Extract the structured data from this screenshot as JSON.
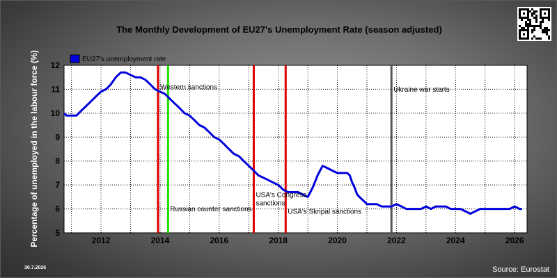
{
  "chart_data": {
    "type": "line",
    "title": "The Monthly Development of EU27's Unemployment Rate (season adjusted)",
    "ylabel": "Percentage of unemployed in the labour force (%)",
    "xlabel": "",
    "xlim": [
      2010.75,
      2026.42
    ],
    "ylim": [
      5,
      12
    ],
    "x_ticks": [
      2012,
      2014,
      2016,
      2018,
      2020,
      2022,
      2024,
      2026
    ],
    "y_ticks": [
      5,
      6,
      7,
      8,
      9,
      10,
      11,
      12
    ],
    "grid": "dotted",
    "legend_position": "top-left",
    "series": [
      {
        "name": "EU27's unemployment rate",
        "color": "#0000dd",
        "x": [
          2010.75,
          2010.83,
          2011.0,
          2011.17,
          2011.33,
          2011.5,
          2011.67,
          2011.83,
          2012.0,
          2012.17,
          2012.33,
          2012.5,
          2012.67,
          2012.83,
          2013.0,
          2013.17,
          2013.33,
          2013.5,
          2013.67,
          2013.83,
          2014.0,
          2014.17,
          2014.33,
          2014.5,
          2014.67,
          2014.83,
          2015.0,
          2015.17,
          2015.33,
          2015.5,
          2015.67,
          2015.83,
          2016.0,
          2016.17,
          2016.33,
          2016.5,
          2016.67,
          2016.83,
          2017.0,
          2017.17,
          2017.33,
          2017.5,
          2017.67,
          2017.83,
          2018.0,
          2018.17,
          2018.33,
          2018.5,
          2018.67,
          2018.83,
          2019.0,
          2019.17,
          2019.33,
          2019.5,
          2019.67,
          2019.83,
          2020.0,
          2020.08,
          2020.17,
          2020.25,
          2020.33,
          2020.42,
          2020.5,
          2020.58,
          2020.67,
          2020.75,
          2020.83,
          2020.92,
          2021.0,
          2021.17,
          2021.33,
          2021.5,
          2021.67,
          2021.83,
          2022.0,
          2022.17,
          2022.33,
          2022.5,
          2022.67,
          2022.83,
          2023.0,
          2023.17,
          2023.33,
          2023.5,
          2023.67,
          2023.83,
          2024.0,
          2024.17,
          2024.33,
          2024.5,
          2024.67,
          2024.83,
          2025.0,
          2025.17,
          2025.33,
          2025.5,
          2025.67,
          2025.83,
          2026.0,
          2026.17,
          2026.25
        ],
        "values": [
          10.0,
          9.9,
          9.9,
          9.9,
          10.1,
          10.3,
          10.5,
          10.7,
          10.9,
          11.0,
          11.2,
          11.5,
          11.7,
          11.7,
          11.6,
          11.5,
          11.5,
          11.4,
          11.2,
          11.0,
          10.9,
          10.8,
          10.6,
          10.4,
          10.2,
          10.0,
          9.9,
          9.7,
          9.5,
          9.4,
          9.2,
          9.0,
          8.9,
          8.7,
          8.5,
          8.3,
          8.2,
          8.0,
          7.8,
          7.6,
          7.4,
          7.3,
          7.2,
          7.1,
          7.0,
          6.8,
          6.7,
          6.7,
          6.7,
          6.6,
          6.5,
          6.9,
          7.4,
          7.8,
          7.7,
          7.6,
          7.5,
          7.5,
          7.5,
          7.5,
          7.5,
          7.4,
          7.1,
          6.9,
          6.6,
          6.5,
          6.4,
          6.3,
          6.2,
          6.2,
          6.2,
          6.1,
          6.1,
          6.1,
          6.2,
          6.1,
          6.0,
          6.0,
          6.0,
          6.0,
          6.1,
          6.0,
          6.1,
          6.1,
          6.1,
          6.0,
          6.0,
          6.0,
          5.9,
          5.8,
          5.9,
          6.0,
          6.0,
          6.0,
          6.0,
          6.0,
          6.0,
          6.0,
          6.1,
          6.0,
          6.0
        ]
      }
    ],
    "events": [
      {
        "label": "Western sanctions",
        "x": 2013.93,
        "color": "#dd0000",
        "label_y": 11.0
      },
      {
        "label": "Russian counter sanctions",
        "x": 2014.27,
        "color": "#22dd00",
        "label_y": 5.9
      },
      {
        "label": "USA's Congress sanctions",
        "x": 2017.17,
        "color": "#dd0000",
        "label_y": 6.5
      },
      {
        "label": "USA's Skripal sanctions",
        "x": 2018.25,
        "color": "#dd0000",
        "label_y": 5.8
      },
      {
        "label": "Ukraine war starts",
        "x": 2021.83,
        "color": "#555555",
        "label_y": 10.9
      }
    ]
  },
  "footer": {
    "source": "Source: Eurostat",
    "date": "30.7.2026"
  },
  "qr_code": "qr-code-icon"
}
